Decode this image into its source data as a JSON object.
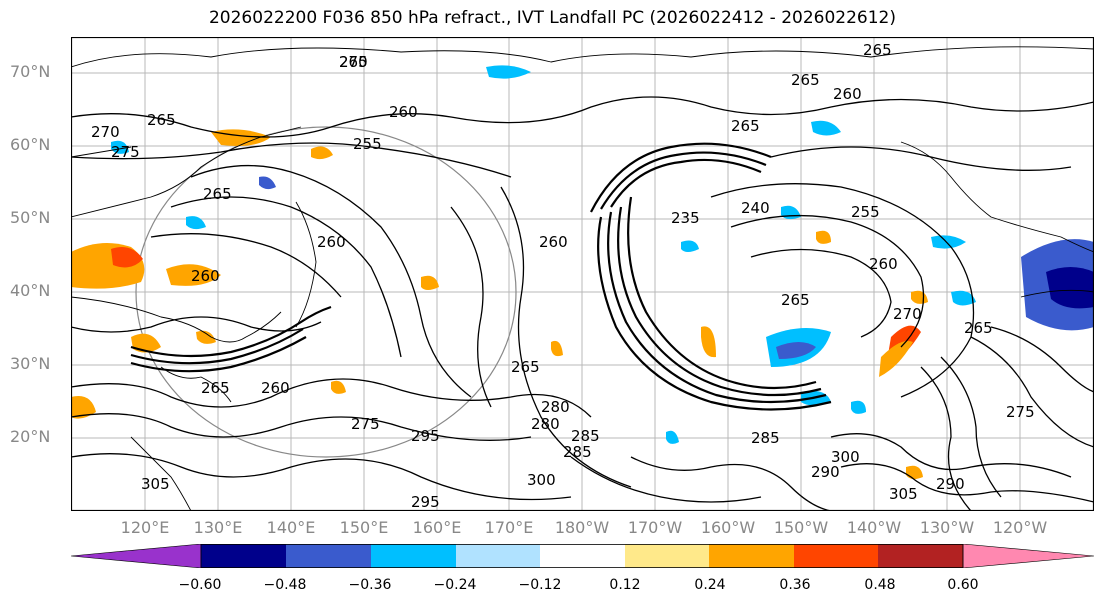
{
  "title": "2026022200 F036 850 hPa refract., IVT Landfall PC (2026022412 - 2026022612)",
  "lat_labels": [
    "70°N",
    "60°N",
    "50°N",
    "40°N",
    "30°N",
    "20°N"
  ],
  "lon_labels": [
    "120°E",
    "130°E",
    "140°E",
    "150°E",
    "160°E",
    "170°E",
    "180°W",
    "170°W",
    "160°W",
    "150°W",
    "140°W",
    "130°W",
    "120°W"
  ],
  "contour_labels": [
    "265",
    "270",
    "265",
    "265",
    "270",
    "265",
    "260",
    "275",
    "255",
    "265",
    "265",
    "260",
    "260",
    "260",
    "255",
    "260",
    "235",
    "240",
    "260",
    "265",
    "270",
    "265",
    "265",
    "260",
    "265",
    "275",
    "285",
    "280",
    "305",
    "300",
    "295",
    "290",
    "285",
    "280",
    "290",
    "305",
    "300",
    "295",
    "285",
    "275"
  ],
  "colorbar": {
    "ticks": [
      "−0.60",
      "−0.48",
      "−0.36",
      "−0.24",
      "−0.12",
      "0.12",
      "0.24",
      "0.36",
      "0.48",
      "0.60"
    ],
    "colors": [
      "#9932cc",
      "#00008b",
      "#3a5bcd",
      "#00bfff",
      "#b0e2ff",
      "#ffffff",
      "#ffe98a",
      "#ffa500",
      "#ff4500",
      "#b22222",
      "#ff88b0"
    ]
  }
}
